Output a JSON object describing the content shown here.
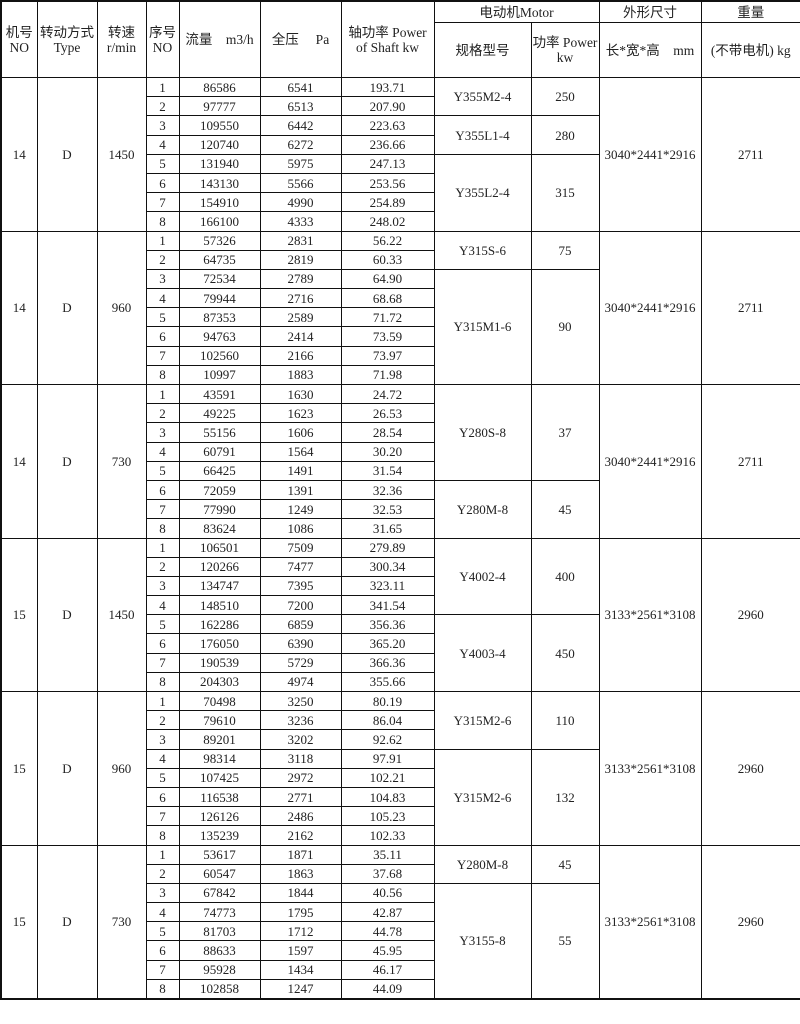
{
  "header": {
    "machine_no": "机号 NO",
    "drive_type": "转动方式Type",
    "speed": "转速 r/min",
    "seq": "序号 NO",
    "flow": "流量　m3/h",
    "pressure": "全压　 Pa",
    "shaft_power": "轴功率 Power of Shaft kw",
    "motor": "电动机Motor",
    "motor_model": "规格型号",
    "motor_power": "功率 Power kw",
    "dimensions": "外形尺寸",
    "dimensions_sub": "长*宽*高　mm",
    "weight": "重量",
    "weight_sub": "(不带电机) kg"
  },
  "groups": [
    {
      "no": "14",
      "type": "D",
      "speed": "1450",
      "dims": "3040*2441*2916",
      "weight": "2711",
      "rows": [
        [
          "1",
          "86586",
          "6541",
          "193.71"
        ],
        [
          "2",
          "97777",
          "6513",
          "207.90"
        ],
        [
          "3",
          "109550",
          "6442",
          "223.63"
        ],
        [
          "4",
          "120740",
          "6272",
          "236.66"
        ],
        [
          "5",
          "131940",
          "5975",
          "247.13"
        ],
        [
          "6",
          "143130",
          "5566",
          "253.56"
        ],
        [
          "7",
          "154910",
          "4990",
          "254.89"
        ],
        [
          "8",
          "166100",
          "4333",
          "248.02"
        ]
      ],
      "motors": [
        {
          "model": "Y355M2-4",
          "power": "250",
          "seq": [
            "1",
            "2"
          ]
        },
        {
          "model": "Y355L1-4",
          "power": "280",
          "seq": [
            "3",
            "4"
          ]
        },
        {
          "model": "Y355L2-4",
          "power": "315",
          "seq": [
            "5",
            "6",
            "7",
            "8"
          ]
        }
      ]
    },
    {
      "no": "14",
      "type": "D",
      "speed": "960",
      "dims": "3040*2441*2916",
      "weight": "2711",
      "rows": [
        [
          "1",
          "57326",
          "2831",
          "56.22"
        ],
        [
          "2",
          "64735",
          "2819",
          "60.33"
        ],
        [
          "3",
          "72534",
          "2789",
          "64.90"
        ],
        [
          "4",
          "79944",
          "2716",
          "68.68"
        ],
        [
          "5",
          "87353",
          "2589",
          "71.72"
        ],
        [
          "6",
          "94763",
          "2414",
          "73.59"
        ],
        [
          "7",
          "102560",
          "2166",
          "73.97"
        ],
        [
          "8",
          "10997",
          "1883",
          "71.98"
        ]
      ],
      "motors": [
        {
          "model": "Y315S-6",
          "power": "75",
          "seq": [
            "1",
            "2"
          ]
        },
        {
          "model": "Y315M1-6",
          "power": "90",
          "seq": [
            "3",
            "4",
            "5",
            "6",
            "7",
            "8"
          ]
        }
      ]
    },
    {
      "no": "14",
      "type": "D",
      "speed": "730",
      "dims": "3040*2441*2916",
      "weight": "2711",
      "rows": [
        [
          "1",
          "43591",
          "1630",
          "24.72"
        ],
        [
          "2",
          "49225",
          "1623",
          "26.53"
        ],
        [
          "3",
          "55156",
          "1606",
          "28.54"
        ],
        [
          "4",
          "60791",
          "1564",
          "30.20"
        ],
        [
          "5",
          "66425",
          "1491",
          "31.54"
        ],
        [
          "6",
          "72059",
          "1391",
          "32.36"
        ],
        [
          "7",
          "77990",
          "1249",
          "32.53"
        ],
        [
          "8",
          "83624",
          "1086",
          "31.65"
        ]
      ],
      "motors": [
        {
          "model": "Y280S-8",
          "power": "37",
          "seq": [
            "1",
            "2",
            "3",
            "4",
            "5"
          ]
        },
        {
          "model": "Y280M-8",
          "power": "45",
          "seq": [
            "6",
            "7",
            "8"
          ]
        }
      ]
    },
    {
      "no": "15",
      "type": "D",
      "speed": "1450",
      "dims": "3133*2561*3108",
      "weight": "2960",
      "rows": [
        [
          "1",
          "106501",
          "7509",
          "279.89"
        ],
        [
          "2",
          "120266",
          "7477",
          "300.34"
        ],
        [
          "3",
          "134747",
          "7395",
          "323.11"
        ],
        [
          "4",
          "148510",
          "7200",
          "341.54"
        ],
        [
          "5",
          "162286",
          "6859",
          "356.36"
        ],
        [
          "6",
          "176050",
          "6390",
          "365.20"
        ],
        [
          "7",
          "190539",
          "5729",
          "366.36"
        ],
        [
          "8",
          "204303",
          "4974",
          "355.66"
        ]
      ],
      "motors": [
        {
          "model": "Y4002-4",
          "power": "400",
          "seq": [
            "1",
            "2",
            "3",
            "4"
          ]
        },
        {
          "model": "Y4003-4",
          "power": "450",
          "seq": [
            "5",
            "6",
            "7",
            "8"
          ]
        }
      ]
    },
    {
      "no": "15",
      "type": "D",
      "speed": "960",
      "dims": "3133*2561*3108",
      "weight": "2960",
      "rows": [
        [
          "1",
          "70498",
          "3250",
          "80.19"
        ],
        [
          "2",
          "79610",
          "3236",
          "86.04"
        ],
        [
          "3",
          "89201",
          "3202",
          "92.62"
        ],
        [
          "4",
          "98314",
          "3118",
          "97.91"
        ],
        [
          "5",
          "107425",
          "2972",
          "102.21"
        ],
        [
          "6",
          "116538",
          "2771",
          "104.83"
        ],
        [
          "7",
          "126126",
          "2486",
          "105.23"
        ],
        [
          "8",
          "135239",
          "2162",
          "102.33"
        ]
      ],
      "motors": [
        {
          "model": "Y315M2-6",
          "power": "110",
          "seq": [
            "1",
            "2",
            "3"
          ]
        },
        {
          "model": "Y315M2-6",
          "power": "132",
          "seq": [
            "4",
            "5",
            "6",
            "7",
            "8"
          ]
        }
      ]
    },
    {
      "no": "15",
      "type": "D",
      "speed": "730",
      "dims": "3133*2561*3108",
      "weight": "2960",
      "rows": [
        [
          "1",
          "53617",
          "1871",
          "35.11"
        ],
        [
          "2",
          "60547",
          "1863",
          "37.68"
        ],
        [
          "3",
          "67842",
          "1844",
          "40.56"
        ],
        [
          "4",
          "74773",
          "1795",
          "42.87"
        ],
        [
          "5",
          "81703",
          "1712",
          "44.78"
        ],
        [
          "6",
          "88633",
          "1597",
          "45.95"
        ],
        [
          "7",
          "95928",
          "1434",
          "46.17"
        ],
        [
          "8",
          "102858",
          "1247",
          "44.09"
        ]
      ],
      "motors": [
        {
          "model": "Y280M-8",
          "power": "45",
          "seq": [
            "1",
            "2"
          ]
        },
        {
          "model": "Y3155-8",
          "power": "55",
          "seq": [
            "3",
            "4",
            "5",
            "6",
            "7",
            "8"
          ]
        }
      ]
    }
  ]
}
